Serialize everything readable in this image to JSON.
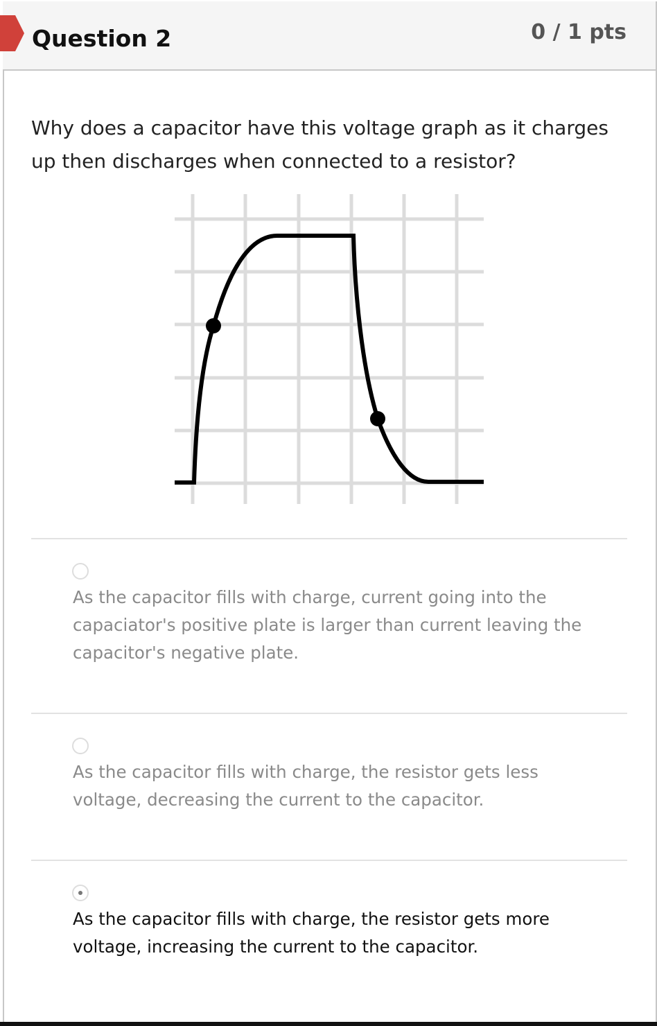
{
  "header": {
    "title": "Question 2",
    "points": "0 / 1 pts"
  },
  "question": "Why does a capacitor have this voltage graph as it charges up then discharges when connected to a resistor?",
  "answers": [
    {
      "text": "As the capacitor fills with charge, current going into the capaciator's positive plate is larger than current leaving the capacitor's negative plate.",
      "selected": false
    },
    {
      "text": "As the capacitor fills with charge, the resistor gets less voltage, decreasing the current to the capacitor.",
      "selected": false
    },
    {
      "text": "As the capacitor fills with charge, the resistor gets more voltage, increasing the current to the capacitor.",
      "selected": true
    }
  ]
}
